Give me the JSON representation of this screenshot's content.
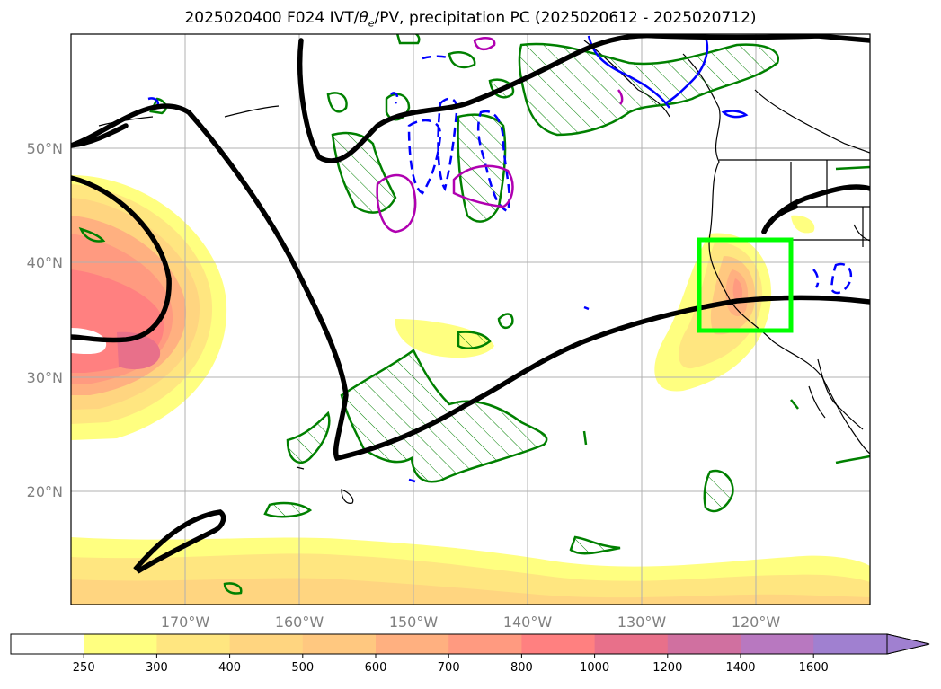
{
  "title_parts": {
    "prefix": "2025020400 F024 IVT/",
    "theta": "θ",
    "theta_sub": "e",
    "suffix": "/PV, precipitation PC (2025020612 - 2025020712)"
  },
  "map": {
    "lon_range": [
      -180,
      -110
    ],
    "lat_range": [
      10,
      60
    ],
    "lat_labels": [
      "20°N",
      "30°N",
      "40°N",
      "50°N"
    ],
    "lat_values": [
      20,
      30,
      40,
      50
    ],
    "lon_labels": [
      "170°W",
      "160°W",
      "150°W",
      "140°W",
      "130°W",
      "120°W"
    ],
    "lon_values": [
      -170,
      -160,
      -150,
      -140,
      -130,
      -120
    ],
    "grid": true,
    "highlight_box": {
      "lon": [
        -125,
        -117
      ],
      "lat": [
        34,
        42
      ],
      "color": "#00ff00"
    },
    "contour_colors": {
      "ivt_line": "#000000",
      "precip_hatch": "#008000",
      "pv_dashed": "#0000ff",
      "pv_solid_magenta": "#b000b0"
    }
  },
  "colorbar": {
    "levels": [
      "250",
      "300",
      "400",
      "500",
      "600",
      "700",
      "800",
      "1000",
      "1200",
      "1400",
      "1600"
    ],
    "colors": [
      "#ffffff",
      "#ffff80",
      "#ffe680",
      "#ffd580",
      "#ffc880",
      "#ffb080",
      "#ff9a80",
      "#ff8080",
      "#e8708a",
      "#d070a0",
      "#b878c0",
      "#a080d0"
    ],
    "extend": "max"
  }
}
